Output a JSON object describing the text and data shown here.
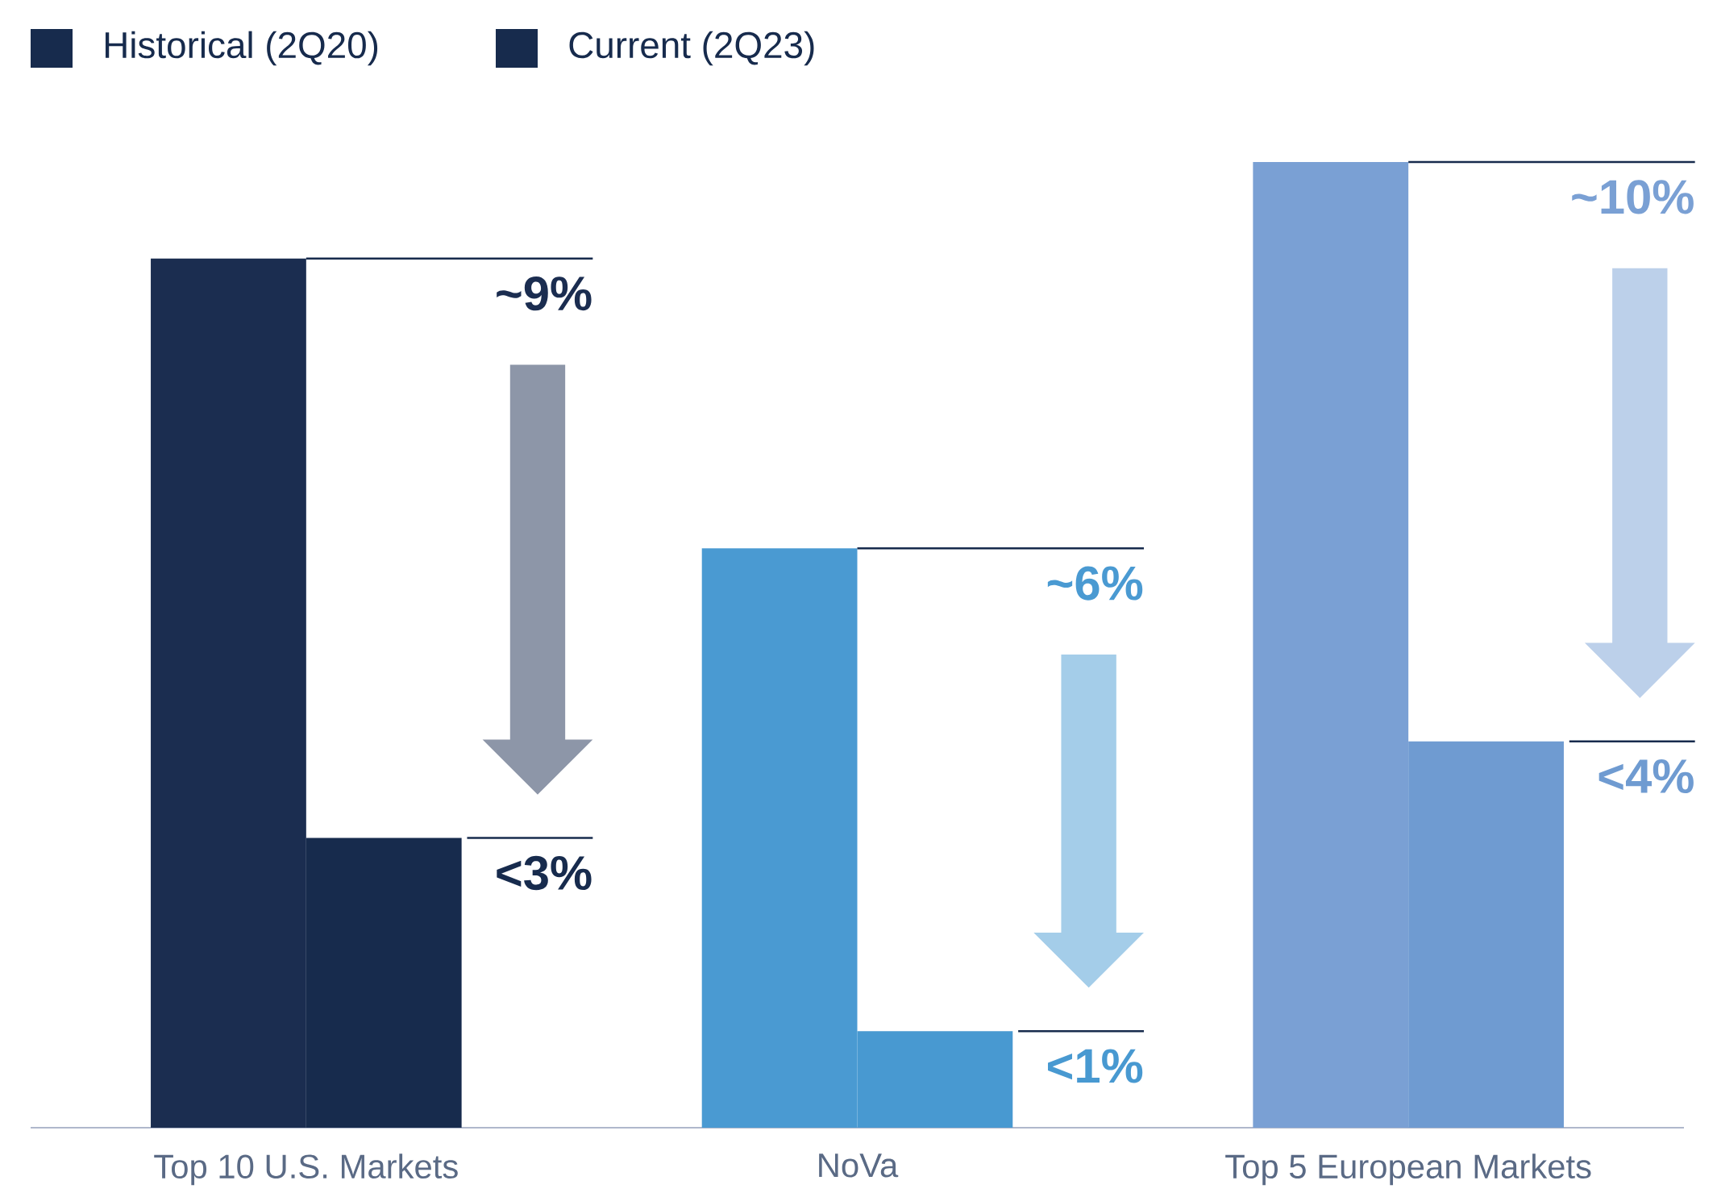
{
  "chart_data": {
    "type": "bar",
    "categories": [
      "Top 10 U.S. Markets",
      "NoVa",
      "Top 5 European Markets"
    ],
    "series": [
      {
        "name": "Historical (2Q20)",
        "color": "#172b4d",
        "colors": [
          "#1b2d50",
          "#4a9ad2",
          "#7aa0d4"
        ],
        "values": [
          9,
          6,
          10
        ],
        "value_labels": [
          "~9%",
          "~6%",
          "~10%"
        ]
      },
      {
        "name": "Current (2Q23)",
        "color": "#172b4d",
        "colors": [
          "#172b4d",
          "#4899d1",
          "#6f9bd1"
        ],
        "values": [
          3,
          1,
          4
        ],
        "value_labels": [
          "<3%",
          "<1%",
          "<4%"
        ]
      }
    ],
    "legend": "top left"
  }
}
